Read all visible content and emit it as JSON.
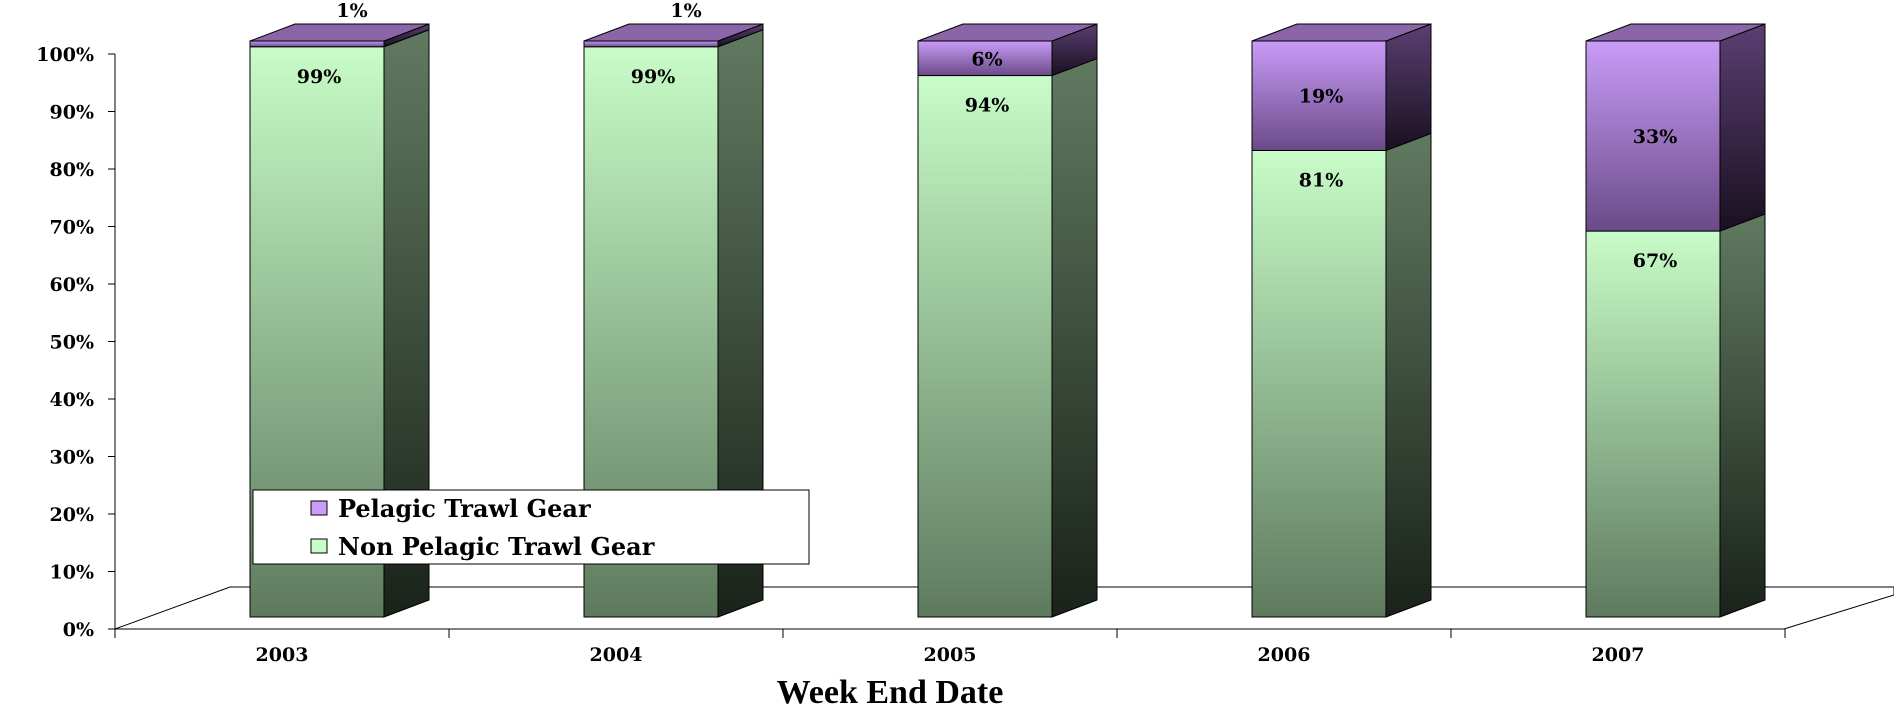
{
  "chart_data": {
    "type": "bar",
    "stacked": true,
    "percent_stacked": true,
    "three_d": true,
    "categories": [
      "2003",
      "2004",
      "2005",
      "2006",
      "2007"
    ],
    "series": [
      {
        "name": "Non Pelagic Trawl Gear",
        "values": [
          99,
          99,
          94,
          81,
          67
        ],
        "labels": [
          "99%",
          "99%",
          "94%",
          "81%",
          "67%"
        ],
        "color": "#c8fcc8"
      },
      {
        "name": "Pelagic Trawl Gear",
        "values": [
          1,
          1,
          6,
          19,
          33
        ],
        "labels": [
          "1%",
          "1%",
          "6%",
          "19%",
          "33%"
        ],
        "color": "#c89cf8"
      }
    ],
    "xlabel": "Week End Date",
    "ylabel": "",
    "ylim": [
      0,
      100
    ],
    "yticks": [
      0,
      10,
      20,
      30,
      40,
      50,
      60,
      70,
      80,
      90,
      100
    ],
    "ytick_labels": [
      "0%",
      "10%",
      "20%",
      "30%",
      "40%",
      "50%",
      "60%",
      "70%",
      "80%",
      "90%",
      "100%"
    ],
    "legend": {
      "placement": "bottom-left",
      "entries": [
        "Pelagic Trawl Gear",
        "Non Pelagic Trawl Gear"
      ]
    },
    "grid": false
  }
}
